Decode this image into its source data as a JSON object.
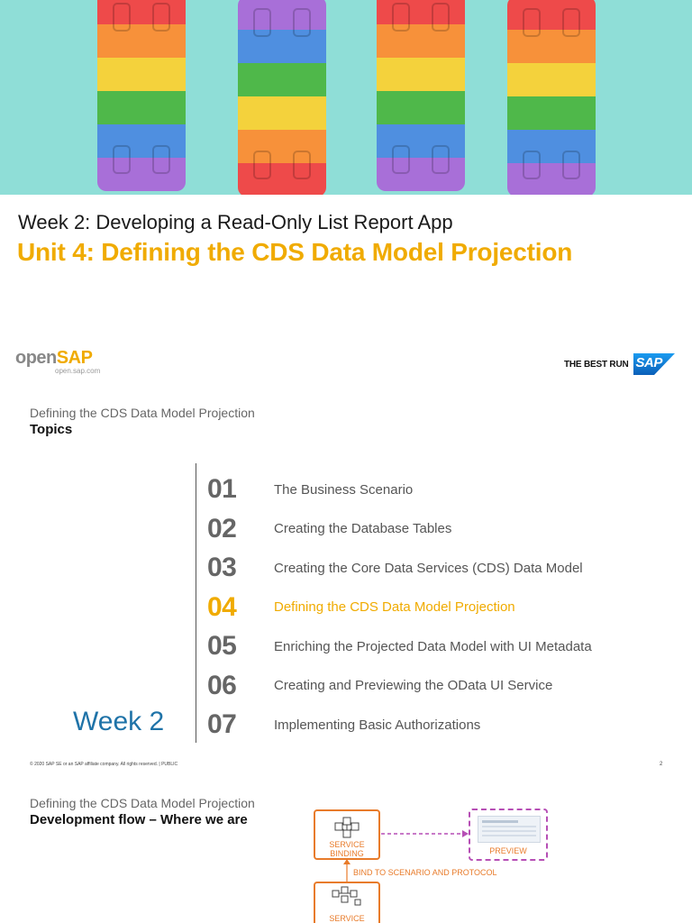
{
  "slide1": {
    "week_title": "Week 2: Developing a Read-Only List Report App",
    "unit_title": "Unit 4: Defining the CDS Data Model Projection",
    "opensap_logo_prefix": "open",
    "opensap_logo_suffix": "SAP",
    "opensap_url": "open.sap.com",
    "bestrun_text": "THE BEST RUN",
    "sap_logo_text": "SAP",
    "colors": {
      "hero_bg": "#8fded7",
      "accent": "#f0ab00",
      "sap_blue": "#0b74de"
    }
  },
  "slide2": {
    "subtitle": "Defining the CDS Data Model Projection",
    "heading": "Topics",
    "week_label": "Week 2",
    "topics": [
      {
        "num": "01",
        "label": "The Business Scenario",
        "active": false
      },
      {
        "num": "02",
        "label": "Creating the Database Tables",
        "active": false
      },
      {
        "num": "03",
        "label": "Creating the Core Data Services (CDS) Data Model",
        "active": false
      },
      {
        "num": "04",
        "label": "Defining the CDS Data Model Projection",
        "active": true
      },
      {
        "num": "05",
        "label": "Enriching the Projected Data Model with UI Metadata",
        "active": false
      },
      {
        "num": "06",
        "label": "Creating and Previewing the OData UI Service",
        "active": false
      },
      {
        "num": "07",
        "label": "Implementing Basic Authorizations",
        "active": false
      }
    ],
    "footer_copyright": "© 2020 SAP SE or an SAP affiliate company. All rights reserved.  |  PUBLIC",
    "page_number": "2"
  },
  "slide3": {
    "subtitle": "Defining the CDS Data Model Projection",
    "heading": "Development flow – Where we are",
    "service_binding_line1": "SERVICE",
    "service_binding_line2": "BINDING",
    "preview_label": "PREVIEW",
    "bind_note": "BIND TO SCENARIO AND PROTOCOL",
    "service_label": "SERVICE"
  }
}
